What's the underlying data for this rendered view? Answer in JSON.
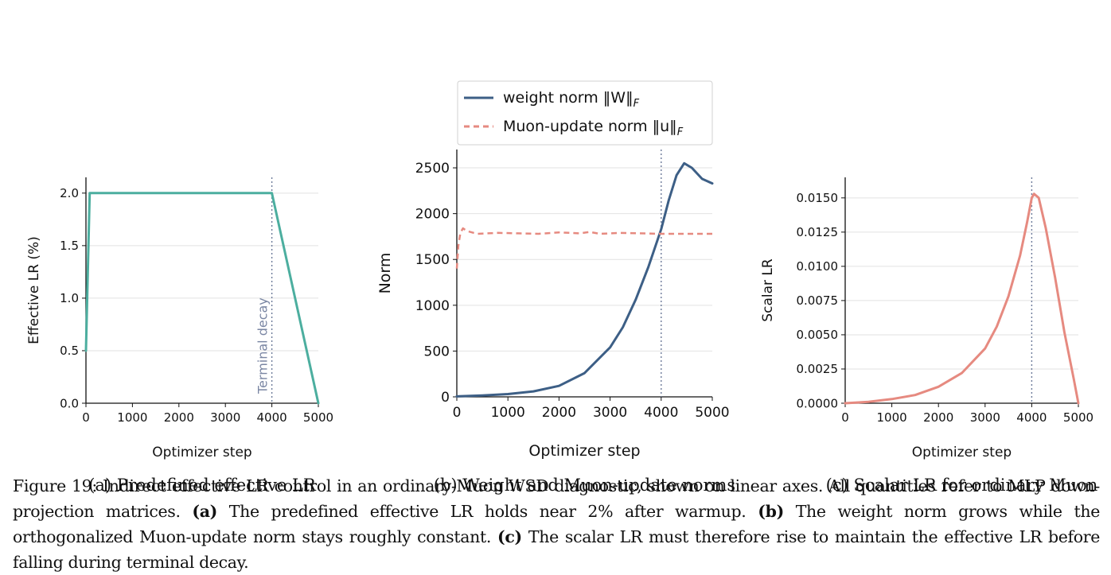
{
  "legend": {
    "items": [
      {
        "label": "weight norm ‖W‖",
        "sub": "F",
        "color": "#3d5f86",
        "style": "solid"
      },
      {
        "label": "Muon-update norm ‖u‖",
        "sub": "F",
        "color": "#e68a80",
        "style": "dashed"
      }
    ]
  },
  "chart_data": [
    {
      "id": "a",
      "type": "line",
      "caption": "(a) Predefined effective LR",
      "xlabel": "Optimizer step",
      "ylabel": "Effective LR (%)",
      "xlim": [
        0,
        5000
      ],
      "ylim": [
        0,
        2.15
      ],
      "xticks": [
        0,
        1000,
        2000,
        3000,
        4000,
        5000
      ],
      "xticklabels": [
        "0",
        "1000",
        "2000",
        "3000",
        "4000",
        "5000"
      ],
      "yticks": [
        0,
        0.5,
        1.0,
        1.5,
        2.0
      ],
      "yticklabels": [
        "0.0",
        "0.5",
        "1.0",
        "1.5",
        "2.0"
      ],
      "grid": "y",
      "vline": {
        "x": 4000,
        "label": "Terminal decay"
      },
      "series": [
        {
          "color": "#4cae9f",
          "style": "solid",
          "x": [
            0,
            0,
            80,
            4000,
            5000
          ],
          "y": [
            0.5,
            0.5,
            2.0,
            2.0,
            0.0
          ]
        }
      ]
    },
    {
      "id": "b",
      "type": "line",
      "caption": "(b) Weight and Muon-update norms",
      "xlabel": "Optimizer step",
      "ylabel": "Norm",
      "xlim": [
        0,
        5000
      ],
      "ylim": [
        0,
        2700
      ],
      "xticks": [
        0,
        1000,
        2000,
        3000,
        4000,
        5000
      ],
      "xticklabels": [
        "0",
        "1000",
        "2000",
        "3000",
        "4000",
        "5000"
      ],
      "yticks": [
        0,
        500,
        1000,
        1500,
        2000,
        2500
      ],
      "yticklabels": [
        "0",
        "500",
        "1000",
        "1500",
        "2000",
        "2500"
      ],
      "grid": "y",
      "vline": {
        "x": 4000
      },
      "series": [
        {
          "color": "#3d5f86",
          "style": "solid",
          "x": [
            0,
            500,
            1000,
            1500,
            2000,
            2500,
            3000,
            3250,
            3500,
            3750,
            4000,
            4150,
            4300,
            4450,
            4600,
            4800,
            5000
          ],
          "y": [
            5,
            15,
            30,
            60,
            120,
            260,
            540,
            760,
            1060,
            1420,
            1830,
            2150,
            2420,
            2550,
            2500,
            2380,
            2330
          ]
        },
        {
          "color": "#e68a80",
          "style": "dashed",
          "x": [
            0,
            30,
            70,
            120,
            200,
            400,
            800,
            1200,
            1600,
            2000,
            2400,
            2600,
            2800,
            3200,
            3600,
            4000,
            4400,
            4800,
            5000
          ],
          "y": [
            1400,
            1650,
            1790,
            1840,
            1810,
            1780,
            1790,
            1785,
            1780,
            1795,
            1785,
            1800,
            1780,
            1790,
            1785,
            1780,
            1780,
            1780,
            1780
          ]
        }
      ]
    },
    {
      "id": "c",
      "type": "line",
      "caption": "(c) Scalar LR for ordinary Muon",
      "xlabel": "Optimizer step",
      "ylabel": "Scalar LR",
      "xlim": [
        0,
        5000
      ],
      "ylim": [
        0,
        0.0165
      ],
      "xticks": [
        0,
        1000,
        2000,
        3000,
        4000,
        5000
      ],
      "xticklabels": [
        "0",
        "1000",
        "2000",
        "3000",
        "4000",
        "5000"
      ],
      "yticks": [
        0,
        0.0025,
        0.005,
        0.0075,
        0.01,
        0.0125,
        0.015
      ],
      "yticklabels": [
        "0.0000",
        "0.0025",
        "0.0050",
        "0.0075",
        "0.0100",
        "0.0125",
        "0.0150"
      ],
      "grid": "y",
      "vline": {
        "x": 4000
      },
      "series": [
        {
          "color": "#e68a80",
          "style": "solid",
          "x": [
            0,
            500,
            1000,
            1500,
            2000,
            2500,
            3000,
            3250,
            3500,
            3750,
            3900,
            4000,
            4050,
            4150,
            4300,
            4500,
            4700,
            4900,
            5000
          ],
          "y": [
            0.0,
            0.0001,
            0.0003,
            0.0006,
            0.0012,
            0.0022,
            0.004,
            0.0056,
            0.0078,
            0.0108,
            0.0132,
            0.015,
            0.0153,
            0.015,
            0.0128,
            0.0092,
            0.0052,
            0.0018,
            0.0
          ]
        }
      ]
    }
  ],
  "caption": {
    "lead": "Figure 19: Indirect effective LR control in an ordinary-Muon WSD diagnostic, shown on linear axes. All quantities refer to MLP down-projection matrices. ",
    "a_label": "(a)",
    "a_text": " The predefined effective LR holds near 2% after warmup. ",
    "b_label": "(b)",
    "b_text": " The weight norm grows while the orthogonalized Muon-update norm stays roughly constant. ",
    "c_label": "(c)",
    "c_text": " The scalar LR must therefore rise to maintain the effective LR before falling during terminal decay."
  }
}
